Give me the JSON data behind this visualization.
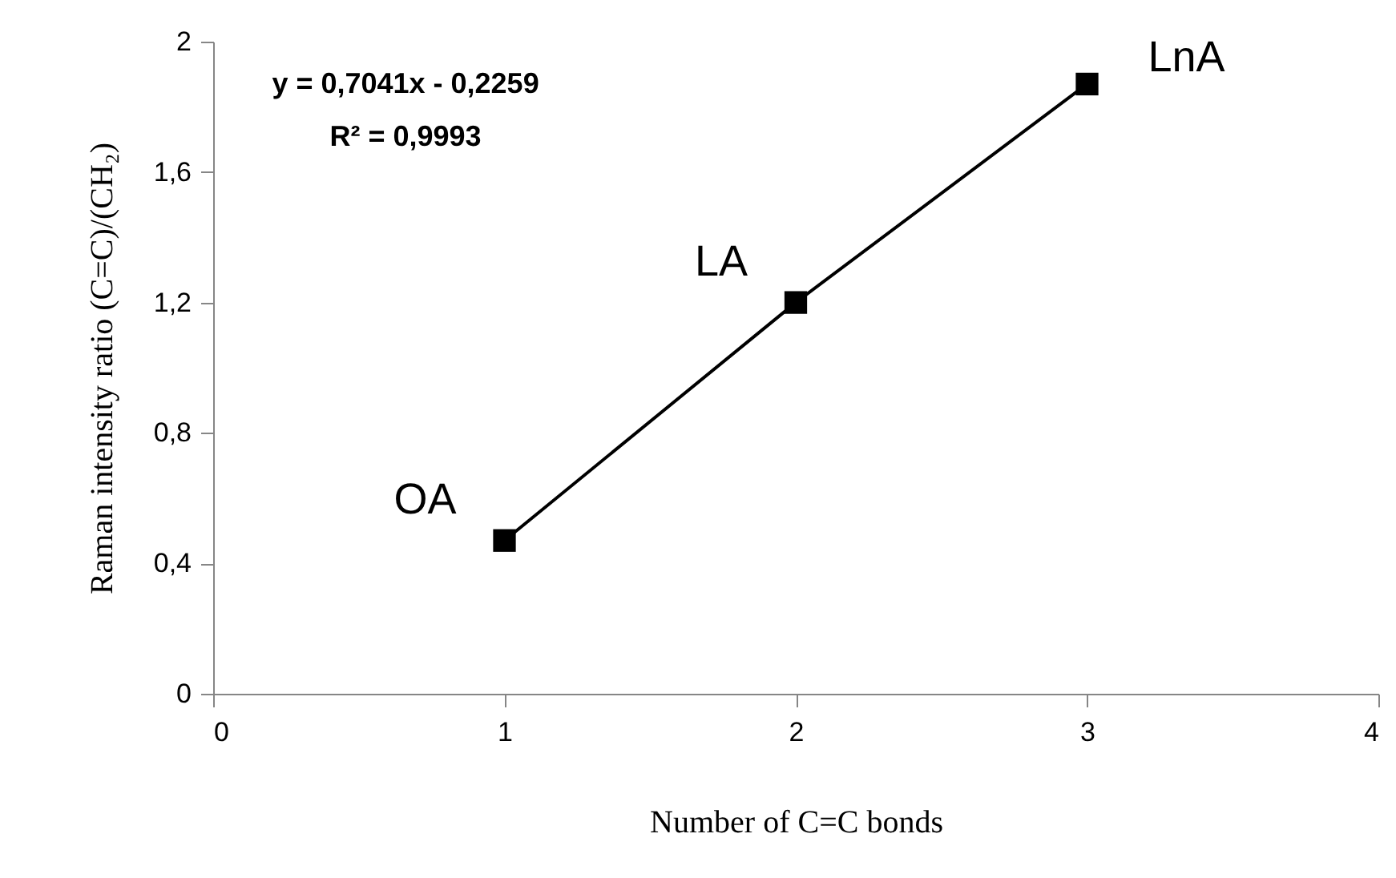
{
  "chart_data": {
    "type": "line",
    "xlabel": "Number of C=C bonds",
    "ylabel": "Raman intensity ratio  (C=C)/(CH₂)",
    "x": [
      1,
      2,
      3
    ],
    "series": [
      {
        "color": "#000000",
        "values": [
          0.47,
          1.2,
          1.87
        ]
      }
    ],
    "marker": "square",
    "line_style": "solid",
    "grid": false,
    "xlim": [
      0,
      4
    ],
    "xticks": [
      0,
      1,
      2,
      3,
      4
    ],
    "ylim": [
      0,
      2
    ],
    "yticks": [
      0,
      {
        "value": 0.4,
        "label": "0,4"
      },
      {
        "value": 0.8,
        "label": "0,8"
      },
      {
        "value": 1.2,
        "label": "1,2"
      },
      {
        "value": 1.6,
        "label": "1,6"
      },
      2
    ],
    "annotations": [
      "y = 0,7041x - 0,2259",
      "R² = 0,9993",
      {
        "text": "OA",
        "x": 1,
        "y": 0.47
      },
      {
        "text": "LA",
        "x": 2,
        "y": 1.2
      },
      {
        "text": "LnA",
        "x": 3,
        "y": 1.87
      }
    ]
  }
}
